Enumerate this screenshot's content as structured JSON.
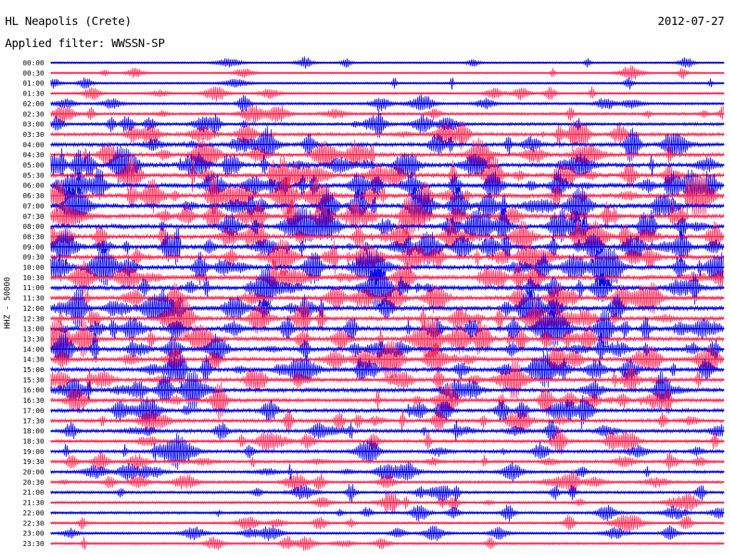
{
  "header": {
    "station": "HL Neapolis (Crete)",
    "date": "2012-07-27",
    "filter": "Applied filter: WWSSN-SP"
  },
  "chart_data": {
    "type": "line",
    "title": "HL Neapolis (Crete)",
    "subtitle": "Applied filter: WWSSN-SP",
    "ylabel": "HHZ - 50000",
    "date": "2012-07-27",
    "colors": {
      "a": "#0000ee",
      "b": "#ff2a55"
    },
    "rows": [
      "00:00",
      "00:30",
      "01:00",
      "01:30",
      "02:00",
      "02:30",
      "03:00",
      "03:30",
      "04:00",
      "04:30",
      "05:00",
      "05:30",
      "06:00",
      "06:30",
      "07:00",
      "07:30",
      "08:00",
      "08:30",
      "09:00",
      "09:30",
      "10:00",
      "10:30",
      "11:00",
      "11:30",
      "12:00",
      "12:30",
      "13:00",
      "13:30",
      "14:00",
      "14:30",
      "15:00",
      "15:30",
      "16:00",
      "16:30",
      "17:00",
      "17:30",
      "18:00",
      "18:30",
      "19:00",
      "19:30",
      "20:00",
      "20:30",
      "21:00",
      "21:30",
      "22:00",
      "22:30",
      "23:00",
      "23:30"
    ],
    "activity": [
      0.1,
      0.08,
      0.12,
      0.18,
      0.25,
      0.32,
      0.4,
      0.55,
      0.65,
      0.78,
      0.9,
      0.92,
      0.95,
      1.0,
      0.95,
      0.92,
      0.95,
      0.92,
      1.0,
      0.95,
      0.95,
      0.92,
      0.92,
      0.9,
      0.9,
      0.92,
      0.92,
      0.9,
      0.85,
      0.82,
      0.8,
      0.75,
      0.72,
      0.7,
      0.65,
      0.6,
      0.55,
      0.5,
      0.45,
      0.4,
      0.38,
      0.35,
      0.32,
      0.3,
      0.28,
      0.25,
      0.22,
      0.2
    ]
  }
}
